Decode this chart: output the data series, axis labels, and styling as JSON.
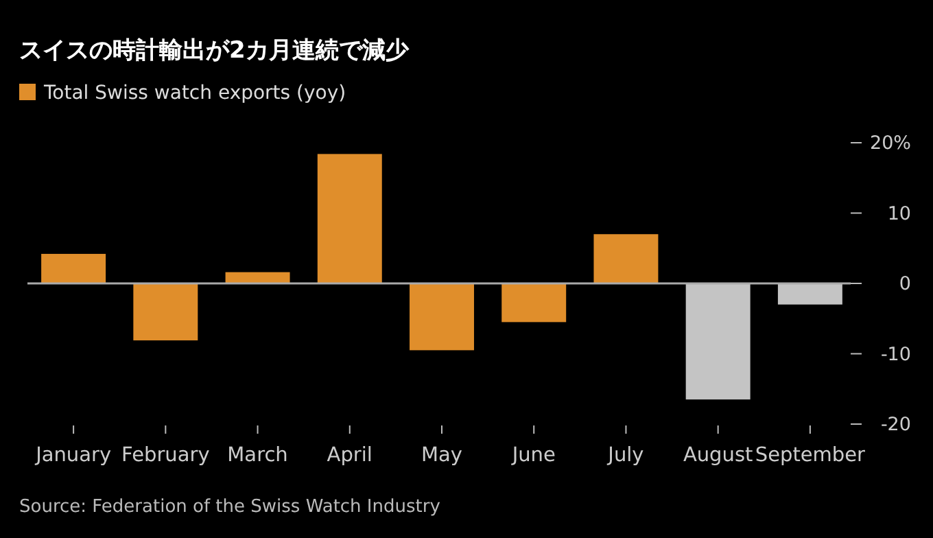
{
  "chart_data": {
    "type": "bar",
    "title": "スイスの時計輸出が2カ月連続で減少",
    "categories": [
      "January",
      "February",
      "March",
      "April",
      "May",
      "June",
      "July",
      "August",
      "September"
    ],
    "series": [
      {
        "name": "Total Swiss watch exports (yoy)",
        "color": "#e08e2b",
        "values": [
          4.2,
          -8.1,
          1.6,
          18.4,
          -9.5,
          -5.5,
          7.0,
          -16.5,
          -3.0
        ],
        "colors": [
          "#e08e2b",
          "#e08e2b",
          "#e08e2b",
          "#e08e2b",
          "#e08e2b",
          "#e08e2b",
          "#e08e2b",
          "#c4c4c4",
          "#c4c4c4"
        ]
      }
    ],
    "ylim": [
      -20,
      20
    ],
    "yticks": [
      {
        "value": 20,
        "label": "20%"
      },
      10,
      0,
      -10,
      -20
    ],
    "legend": "top left",
    "ref_lines": [
      {
        "axis": "y",
        "value": 0,
        "color": "#aaaaaa"
      }
    ],
    "annotations": [
      "Source: Federation of the Swiss Watch Industry"
    ]
  }
}
